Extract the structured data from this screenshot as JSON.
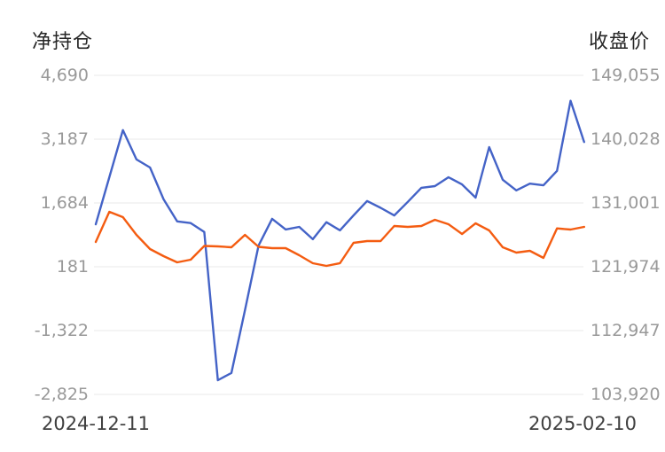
{
  "chart": {
    "left_title": "净持仓",
    "right_title": "收盘价",
    "x_labels": [
      "2024-12-11",
      "2025-02-10"
    ],
    "left_axis": {
      "ticks": [
        "4,690",
        "3,187",
        "1,684",
        "181",
        "-1,322",
        "-2,825"
      ]
    },
    "right_axis": {
      "ticks": [
        "149,055",
        "140,028",
        "131,001",
        "121,974",
        "112,947",
        "103,920"
      ]
    },
    "colors": {
      "net_position_line": "#4463c7",
      "close_price_line": "#f45c11",
      "gridline": "#e9e9e9",
      "tick_text": "#999999",
      "date_text": "#404040",
      "title_text": "#262626",
      "background": "#ffffff"
    }
  },
  "chart_data": {
    "type": "line",
    "title": "",
    "x_range": [
      "2024-12-11",
      "2025-02-10"
    ],
    "grid": true,
    "legend_position": "none",
    "left_axis_label": "净持仓",
    "right_axis_label": "收盘价",
    "left_ylim": [
      -2825,
      4690
    ],
    "right_ylim": [
      103920,
      149055
    ],
    "left_ticks_values": [
      4690,
      3187,
      1684,
      181,
      -1322,
      -2825
    ],
    "right_ticks_values": [
      149055,
      140028,
      131001,
      121974,
      112947,
      103920
    ],
    "series": [
      {
        "id": "net-position",
        "name": "净持仓",
        "axis": "left",
        "color": "#4463c7",
        "values": [
          1180,
          2290,
          3400,
          2710,
          2520,
          1770,
          1250,
          1210,
          1000,
          -2490,
          -2320,
          -840,
          680,
          1310,
          1060,
          1120,
          830,
          1230,
          1040,
          1390,
          1730,
          1570,
          1390,
          1710,
          2040,
          2080,
          2290,
          2120,
          1810,
          3000,
          2230,
          1980,
          2140,
          2100,
          2440,
          4090,
          3120
        ]
      },
      {
        "id": "close-price",
        "name": "收盘价",
        "axis": "right",
        "color": "#f45c11",
        "values": [
          125480,
          129750,
          129000,
          126490,
          124480,
          123480,
          122600,
          122980,
          124920,
          124860,
          124730,
          126490,
          124790,
          124610,
          124610,
          123600,
          122480,
          122100,
          122480,
          125360,
          125610,
          125610,
          127740,
          127620,
          127740,
          128620,
          127990,
          126610,
          128120,
          127120,
          124730,
          123980,
          124230,
          123230,
          127400,
          127240,
          127620
        ]
      }
    ]
  }
}
